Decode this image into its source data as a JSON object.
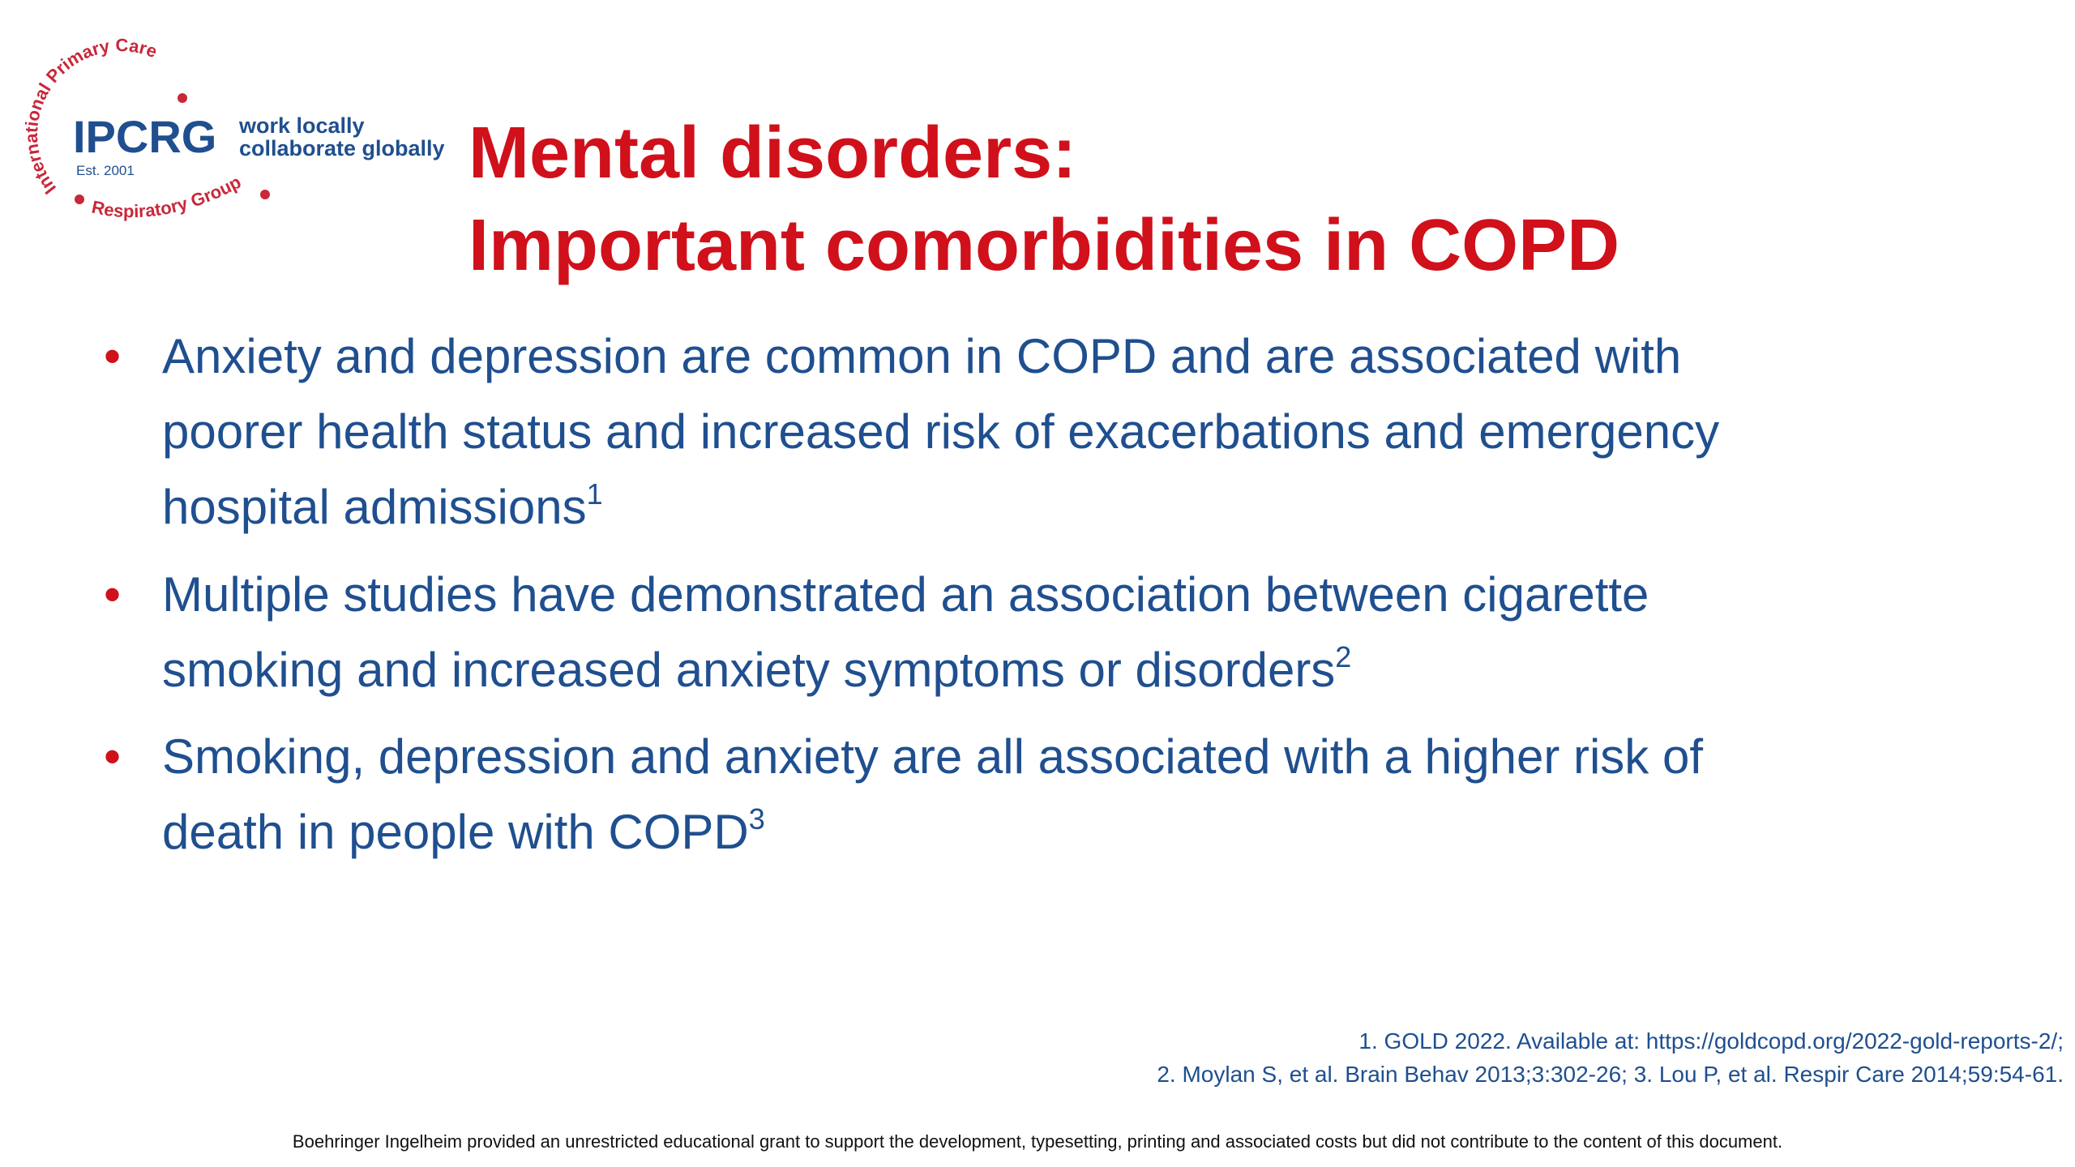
{
  "logo": {
    "arc_top": "International Primary Care",
    "arc_bottom": "Respiratory Group",
    "name": "IPCRG",
    "est": "Est. 2001",
    "tagline": [
      "work locally",
      "collaborate globally"
    ]
  },
  "title": [
    "Mental disorders:",
    "Important comorbidities in COPD"
  ],
  "bullets": [
    {
      "lines": [
        "Anxiety and depression are common in COPD and are associated with",
        "poorer health status and increased risk of exacerbations and emergency",
        "hospital admissions"
      ],
      "sup": "1"
    },
    {
      "lines": [
        "Multiple studies have demonstrated an association between cigarette",
        "smoking and increased anxiety symptoms or disorders"
      ],
      "sup": "2"
    },
    {
      "lines": [
        "Smoking, depression and anxiety are all associated with a higher risk of",
        "death in people with COPD"
      ],
      "sup": "3"
    }
  ],
  "references": [
    "1. GOLD 2022. Available at: https://goldcopd.org/2022-gold-reports-2/;",
    "2. Moylan S, et al. Brain Behav 2013;3:302-26; 3. Lou P, et al. Respir Care 2014;59:54-61."
  ],
  "footer": "Boehringer Ingelheim provided an unrestricted educational grant to support the development, typesetting, printing and associated costs but did not contribute to the content of this document."
}
